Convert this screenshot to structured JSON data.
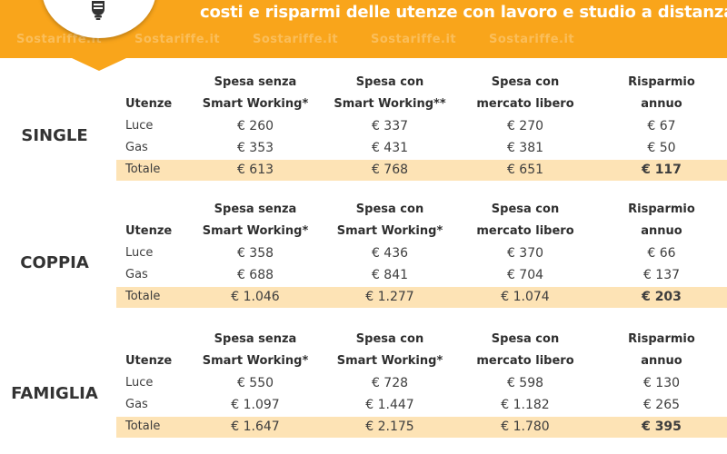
{
  "header": {
    "headline": "costi e risparmi delle utenze con lavoro e studio a distanza",
    "watermark": "Sostariffe.it",
    "logo_icon": "lightbulb-icon",
    "accent_color": "#f9a51b",
    "highlight_color": "#fde3b5"
  },
  "sections": [
    {
      "profile": "SINGLE",
      "headers": {
        "utenze": "Utenze",
        "col1": [
          "Spesa senza",
          "Smart Working*"
        ],
        "col2": [
          "Spesa con",
          "Smart Working**"
        ],
        "col3": [
          "Spesa con",
          "mercato libero"
        ],
        "col4": [
          "Risparmio",
          "annuo"
        ]
      },
      "rows": [
        {
          "label": "Luce",
          "values": [
            "€ 260",
            "€ 337",
            "€ 270",
            "€ 67"
          ]
        },
        {
          "label": "Gas",
          "values": [
            "€ 353",
            "€ 431",
            "€ 381",
            "€ 50"
          ]
        },
        {
          "label": "Totale",
          "values": [
            "€ 613",
            "€ 768",
            "€ 651",
            "€ 117"
          ]
        }
      ]
    },
    {
      "profile": "COPPIA",
      "headers": {
        "utenze": "Utenze",
        "col1": [
          "Spesa senza",
          "Smart Working*"
        ],
        "col2": [
          "Spesa con",
          "Smart Working*"
        ],
        "col3": [
          "Spesa con",
          "mercato libero"
        ],
        "col4": [
          "Risparmio",
          "annuo"
        ]
      },
      "rows": [
        {
          "label": "Luce",
          "values": [
            "€ 358",
            "€ 436",
            "€ 370",
            "€ 66"
          ]
        },
        {
          "label": "Gas",
          "values": [
            "€ 688",
            "€ 841",
            "€ 704",
            "€ 137"
          ]
        },
        {
          "label": "Totale",
          "values": [
            "€ 1.046",
            "€ 1.277",
            "€ 1.074",
            "€ 203"
          ]
        }
      ]
    },
    {
      "profile": "FAMIGLIA",
      "headers": {
        "utenze": "Utenze",
        "col1": [
          "Spesa senza",
          "Smart Working*"
        ],
        "col2": [
          "Spesa con",
          "Smart Working*"
        ],
        "col3": [
          "Spesa con",
          "mercato libero"
        ],
        "col4": [
          "Risparmio",
          "annuo"
        ]
      },
      "rows": [
        {
          "label": "Luce",
          "values": [
            "€ 550",
            "€ 728",
            "€ 598",
            "€ 130"
          ]
        },
        {
          "label": "Gas",
          "values": [
            "€ 1.097",
            "€ 1.447",
            "€ 1.182",
            "€ 265"
          ]
        },
        {
          "label": "Totale",
          "values": [
            "€ 1.647",
            "€ 2.175",
            "€ 1.780",
            "€ 395"
          ]
        }
      ]
    }
  ]
}
